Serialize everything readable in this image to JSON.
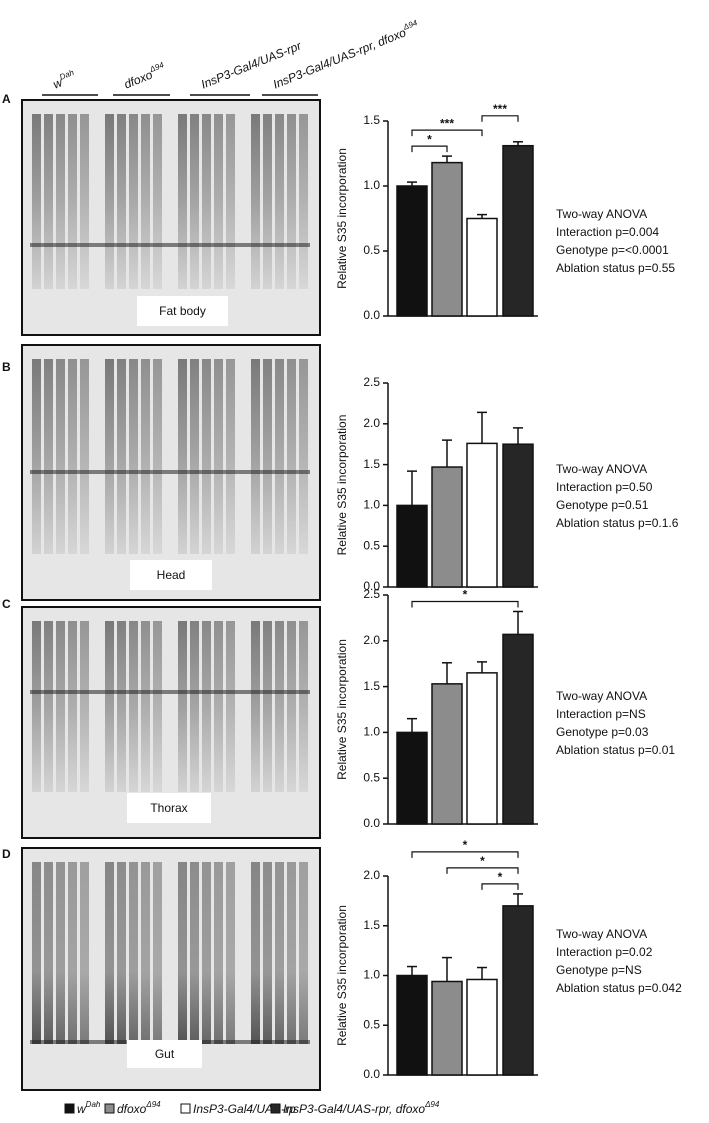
{
  "lane_headers": [
    {
      "text": "w",
      "sup": "Dah"
    },
    {
      "text": "dfoxo",
      "sup": "Δ94"
    },
    {
      "text": "InsP3-Gal4/UAS-rpr"
    },
    {
      "text": "InsP3-Gal4/UAS-rpr, dfoxo",
      "sup": "Δ94"
    }
  ],
  "legend": [
    {
      "text": "w",
      "sup": "Dah",
      "color": "#111111"
    },
    {
      "text": "dfoxo",
      "sup": "Δ94",
      "color": "#8c8c8c"
    },
    {
      "text": "InsP3-Gal4/UAS-rp",
      "color": "#ffffff"
    },
    {
      "text": "InsP3-Gal4/UAS-rpr, dfoxo",
      "sup": "Δ94",
      "color": "#262626"
    }
  ],
  "chart_data": [
    {
      "type": "bar",
      "panel": "A",
      "gel_label": "Fat body",
      "y_label": "Relative S35 incorporation",
      "values": [
        1.0,
        1.18,
        0.75,
        1.31
      ],
      "errors": [
        0.03,
        0.05,
        0.03,
        0.03
      ],
      "ylim": [
        0,
        1.5
      ],
      "yticks": [
        {
          "value": 0,
          "label": "0.0"
        },
        0.5,
        {
          "value": 1,
          "label": "1.0"
        },
        1.5
      ],
      "significance": [
        {
          "label": "*",
          "bars": [
            0,
            1
          ]
        },
        {
          "label": "***",
          "bars": [
            0,
            2
          ]
        },
        {
          "label": "***",
          "bars": [
            2,
            3
          ]
        }
      ],
      "stats": [
        "Two-way ANOVA",
        "Interaction p=0.004",
        "Genotype p=<0.0001",
        "Ablation status p=0.55"
      ]
    },
    {
      "type": "bar",
      "panel": "B",
      "gel_label": "Head",
      "y_label": "Relative S35 incorporation",
      "values": [
        1.0,
        1.47,
        1.76,
        1.75
      ],
      "errors": [
        0.42,
        0.33,
        0.38,
        0.2
      ],
      "ylim": [
        0,
        2.5
      ],
      "yticks": [
        {
          "value": 0,
          "label": "0.0"
        },
        0.5,
        {
          "value": 1,
          "label": "1.0"
        },
        1.5,
        {
          "value": 2,
          "label": "2.0"
        },
        2.5
      ],
      "significance": [],
      "stats": [
        "Two-way ANOVA",
        "Interaction p=0.50",
        "Genotype p=0.51",
        "Ablation status p=0.1.6"
      ]
    },
    {
      "type": "bar",
      "panel": "C",
      "gel_label": "Thorax",
      "y_label": "Relative S35 incorporation",
      "values": [
        1.0,
        1.53,
        1.65,
        2.07
      ],
      "errors": [
        0.15,
        0.23,
        0.12,
        0.25
      ],
      "ylim": [
        0,
        2.5
      ],
      "yticks": [
        {
          "value": 0,
          "label": "0.0"
        },
        0.5,
        {
          "value": 1,
          "label": "1.0"
        },
        1.5,
        {
          "value": 2,
          "label": "2.0"
        },
        2.5
      ],
      "significance": [
        {
          "label": "*",
          "bars": [
            0,
            3
          ]
        }
      ],
      "stats": [
        "Two-way ANOVA",
        "Interaction p=NS",
        "Genotype p=0.03",
        "Ablation status p=0.01"
      ]
    },
    {
      "type": "bar",
      "panel": "D",
      "gel_label": "Gut",
      "y_label": "Relative S35 incorporation",
      "values": [
        1.0,
        0.94,
        0.96,
        1.7
      ],
      "errors": [
        0.09,
        0.24,
        0.12,
        0.12
      ],
      "ylim": [
        0,
        2
      ],
      "yticks": [
        {
          "value": 0,
          "label": "0.0"
        },
        0.5,
        {
          "value": 1,
          "label": "1.0"
        },
        1.5,
        {
          "value": 2,
          "label": "2.0"
        }
      ],
      "significance": [
        {
          "label": "*",
          "bars": [
            2,
            3
          ]
        },
        {
          "label": "*",
          "bars": [
            1,
            3
          ]
        },
        {
          "label": "*",
          "bars": [
            0,
            3
          ]
        }
      ],
      "stats": [
        "Two-way ANOVA",
        "Interaction p=0.02",
        "Genotype p=NS",
        "Ablation status p=0.042"
      ]
    }
  ]
}
